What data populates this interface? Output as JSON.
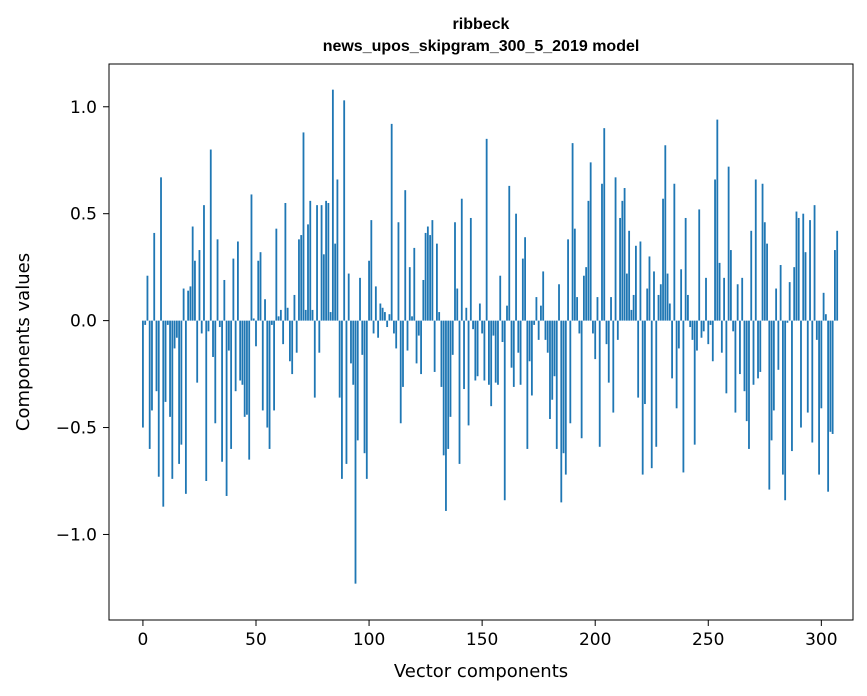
{
  "chart_data": {
    "type": "bar",
    "title_line1": "ribbeck",
    "title_line2": "news_upos_skipgram_300_5_2019 model",
    "xlabel": "Vector components",
    "ylabel": "Components values",
    "xlim": [
      -15,
      314
    ],
    "ylim": [
      -1.4,
      1.2
    ],
    "xticks": [
      0,
      50,
      100,
      150,
      200,
      250,
      300
    ],
    "xtick_labels": [
      "0",
      "50",
      "100",
      "150",
      "200",
      "250",
      "300"
    ],
    "yticks": [
      -1.0,
      -0.5,
      0.0,
      0.5,
      1.0
    ],
    "ytick_labels": [
      "−1.0",
      "−0.5",
      "0.0",
      "0.5",
      "1.0"
    ],
    "bar_color": "#1f77b4",
    "grid": false,
    "values": [
      -0.5,
      -0.02,
      0.21,
      -0.6,
      -0.42,
      0.41,
      -0.33,
      -0.73,
      0.67,
      -0.87,
      -0.38,
      -0.02,
      -0.45,
      -0.74,
      -0.13,
      -0.08,
      -0.67,
      -0.58,
      0.15,
      -0.81,
      0.14,
      0.16,
      0.44,
      0.28,
      -0.29,
      0.33,
      -0.06,
      0.54,
      -0.75,
      -0.05,
      0.8,
      -0.17,
      -0.48,
      0.38,
      -0.03,
      -0.66,
      0.19,
      -0.82,
      -0.14,
      -0.6,
      0.29,
      -0.33,
      0.37,
      -0.28,
      -0.3,
      -0.45,
      -0.44,
      -0.65,
      0.59,
      0.01,
      -0.12,
      0.28,
      0.32,
      -0.42,
      0.1,
      -0.5,
      -0.6,
      -0.02,
      -0.42,
      0.43,
      0.02,
      0.05,
      -0.11,
      0.55,
      0.06,
      -0.19,
      -0.25,
      0.12,
      -0.15,
      0.38,
      0.4,
      0.88,
      0.05,
      0.45,
      0.56,
      0.05,
      -0.36,
      0.54,
      -0.15,
      0.54,
      0.31,
      0.56,
      0.55,
      0.04,
      1.08,
      0.36,
      0.66,
      -0.36,
      -0.74,
      1.03,
      -0.67,
      0.22,
      -0.2,
      -0.3,
      -1.23,
      -0.56,
      0.2,
      -0.16,
      -0.62,
      -0.74,
      0.28,
      0.47,
      -0.06,
      0.16,
      -0.08,
      0.08,
      0.06,
      0.04,
      -0.03,
      0.03,
      0.92,
      -0.06,
      -0.13,
      0.46,
      -0.48,
      -0.31,
      0.61,
      -0.14,
      0.25,
      0.02,
      0.34,
      -0.2,
      -0.07,
      -0.25,
      0.19,
      0.41,
      0.44,
      0.4,
      0.47,
      -0.24,
      0.36,
      0.04,
      -0.31,
      -0.63,
      -0.89,
      -0.6,
      -0.45,
      -0.16,
      0.46,
      0.15,
      -0.67,
      0.57,
      -0.32,
      0.06,
      -0.49,
      0.48,
      -0.04,
      -0.28,
      -0.26,
      0.08,
      -0.06,
      -0.28,
      0.85,
      -0.3,
      -0.4,
      -0.07,
      -0.29,
      -0.3,
      0.21,
      -0.1,
      -0.84,
      0.07,
      0.63,
      -0.22,
      -0.31,
      0.5,
      -0.15,
      -0.3,
      0.29,
      0.39,
      -0.6,
      -0.19,
      -0.35,
      -0.02,
      0.11,
      -0.09,
      0.07,
      0.23,
      -0.09,
      -0.15,
      -0.46,
      -0.37,
      -0.26,
      -0.6,
      0.17,
      -0.85,
      -0.62,
      -0.72,
      0.38,
      -0.48,
      0.83,
      0.43,
      0.11,
      -0.06,
      -0.55,
      0.21,
      0.25,
      0.56,
      0.74,
      -0.06,
      -0.18,
      0.11,
      -0.59,
      0.64,
      0.9,
      -0.11,
      -0.29,
      0.11,
      -0.43,
      0.67,
      -0.09,
      0.48,
      0.56,
      0.62,
      0.22,
      0.42,
      0.05,
      0.12,
      0.35,
      -0.36,
      0.37,
      -0.72,
      -0.39,
      0.15,
      0.3,
      -0.69,
      0.23,
      -0.59,
      0.12,
      0.17,
      0.57,
      0.82,
      0.22,
      0.08,
      -0.27,
      0.64,
      -0.41,
      -0.13,
      0.24,
      -0.71,
      0.48,
      0.12,
      -0.03,
      -0.09,
      -0.58,
      -0.14,
      0.52,
      -0.08,
      -0.05,
      0.2,
      -0.11,
      -0.02,
      -0.19,
      0.66,
      0.94,
      0.27,
      -0.15,
      0.2,
      -0.34,
      0.72,
      0.33,
      -0.05,
      -0.43,
      0.17,
      -0.25,
      0.2,
      -0.33,
      -0.47,
      -0.6,
      0.42,
      -0.3,
      0.66,
      -0.27,
      -0.24,
      0.64,
      0.46,
      0.36,
      -0.79,
      -0.56,
      -0.42,
      0.15,
      -0.23,
      0.26,
      -0.72,
      -0.84,
      -0.01,
      0.18,
      -0.61,
      0.25,
      0.51,
      0.48,
      -0.5,
      0.5,
      0.32,
      -0.43,
      0.47,
      -0.57,
      0.54,
      -0.09,
      -0.72,
      -0.41,
      0.13,
      0.03,
      -0.8,
      -0.52,
      -0.53,
      0.33,
      0.42
    ]
  }
}
